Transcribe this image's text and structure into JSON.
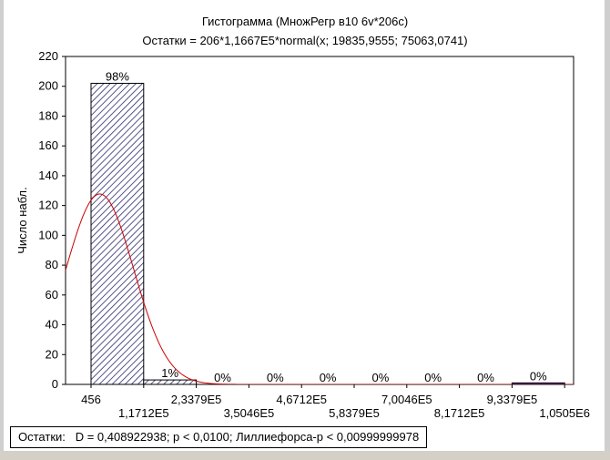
{
  "window": {
    "title": "Гистограмма (МножРегр в10 6v*206c)",
    "subtitle": "Остатки = 206*1,1667E5*normal(x; 19835,9555; 75063,0741)",
    "stats": "Остатки:   D = 0,408922938; p < 0,0100; Лиллиефорса-р < 0,00999999978"
  },
  "colors": {
    "bar_hatch": "#2a2a6a",
    "bar_outline": "#000000",
    "last_bar_fill": "#2040c0",
    "curve": "#cc0000",
    "plot_border": "#000000",
    "background": "#ffffff"
  },
  "chart_data": {
    "type": "bar",
    "title": "Гистограмма (МножРегр в10 6v*206c)",
    "subtitle": "Остатки = 206*1,1667E5*normal(x; 19835,9555; 75063,0741)",
    "xlabel": "",
    "ylabel": "Число набл.",
    "ylim": [
      0,
      220
    ],
    "yticks": [
      0,
      20,
      40,
      60,
      80,
      100,
      120,
      140,
      160,
      180,
      200,
      220
    ],
    "ytick_labels": [
      "0",
      "20",
      "40",
      "60",
      "80",
      "100",
      "120",
      "140",
      "160",
      "180",
      "200",
      "220"
    ],
    "x_tick_labels": [
      "456",
      "1,1712E5",
      "2,3379E5",
      "3,5046E5",
      "4,6712E5",
      "5,8379E5",
      "7,0046E5",
      "8,1712E5",
      "9,3379E5",
      "1,0505E6"
    ],
    "bins": [
      {
        "value": 202,
        "label": "98%"
      },
      {
        "value": 3,
        "label": "1%"
      },
      {
        "value": 0,
        "label": "0%"
      },
      {
        "value": 0,
        "label": "0%"
      },
      {
        "value": 0,
        "label": "0%"
      },
      {
        "value": 0,
        "label": "0%"
      },
      {
        "value": 0,
        "label": "0%"
      },
      {
        "value": 0,
        "label": "0%"
      },
      {
        "value": 1,
        "label": "0%"
      }
    ],
    "fitted_curve": {
      "type": "normal",
      "n": 206,
      "bin_width": 116670,
      "mean": 19835.9555,
      "sd": 75063.0741
    },
    "grid": false,
    "legend": "none"
  }
}
